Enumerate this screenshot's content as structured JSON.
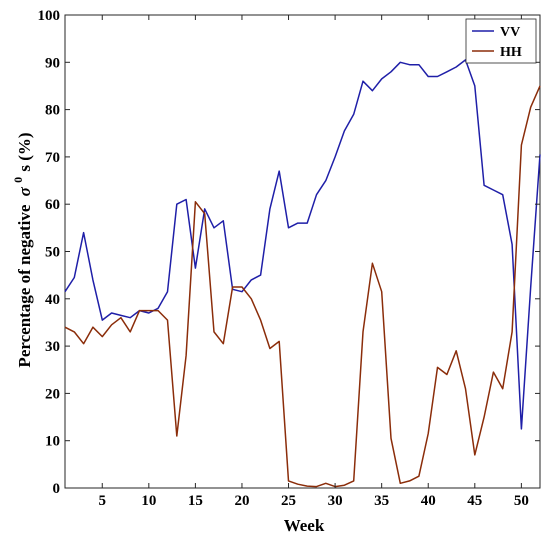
{
  "chart_data": {
    "type": "line",
    "xlabel": "Week",
    "ylabel_prefix": "Percentage of negative",
    "ylabel_symbol": "σ",
    "ylabel_sup": "0",
    "ylabel_suffix": "s (%)",
    "xlim": [
      1,
      52
    ],
    "ylim": [
      0,
      100
    ],
    "x_ticks": [
      5,
      10,
      15,
      20,
      25,
      30,
      35,
      40,
      45,
      50
    ],
    "y_ticks": [
      0,
      10,
      20,
      30,
      40,
      50,
      60,
      70,
      80,
      90,
      100
    ],
    "grid": false,
    "legend_position": "top-right",
    "x": [
      1,
      2,
      3,
      4,
      5,
      6,
      7,
      8,
      9,
      10,
      11,
      12,
      13,
      14,
      15,
      16,
      17,
      18,
      19,
      20,
      21,
      22,
      23,
      24,
      25,
      26,
      27,
      28,
      29,
      30,
      31,
      32,
      33,
      34,
      35,
      36,
      37,
      38,
      39,
      40,
      41,
      42,
      43,
      44,
      45,
      46,
      47,
      48,
      49,
      50,
      51,
      52
    ],
    "series": [
      {
        "name": "VV",
        "color": "#1f1fa8",
        "values": [
          41.5,
          44.5,
          54,
          44,
          35.5,
          37,
          36.5,
          36,
          37.5,
          37,
          38,
          41.5,
          60,
          61,
          46.5,
          59,
          55,
          56.5,
          42,
          41.5,
          44,
          45,
          59,
          67,
          55,
          56,
          56,
          62,
          65,
          70,
          75.5,
          79,
          86,
          84,
          86.5,
          88,
          90,
          89.5,
          89.5,
          87,
          87,
          88,
          89,
          90.5,
          85,
          64,
          63,
          62,
          51.5,
          12.5,
          42.5,
          70.5
        ]
      },
      {
        "name": "HH",
        "color": "#8b2d0a",
        "values": [
          34,
          33,
          30.5,
          34,
          32,
          34.5,
          36,
          33,
          37.5,
          37.5,
          37.5,
          35.5,
          11,
          28,
          60.5,
          58,
          33,
          30.5,
          42.5,
          42.5,
          40,
          35.5,
          29.5,
          31,
          1.5,
          0.8,
          0.4,
          0.3,
          1,
          0.3,
          0.6,
          1.5,
          33,
          47.5,
          41.5,
          10.5,
          1,
          1.5,
          2.5,
          11.5,
          25.5,
          24,
          29,
          21,
          7,
          15,
          24.5,
          21,
          33,
          72.5,
          80.5,
          85
        ]
      }
    ]
  }
}
